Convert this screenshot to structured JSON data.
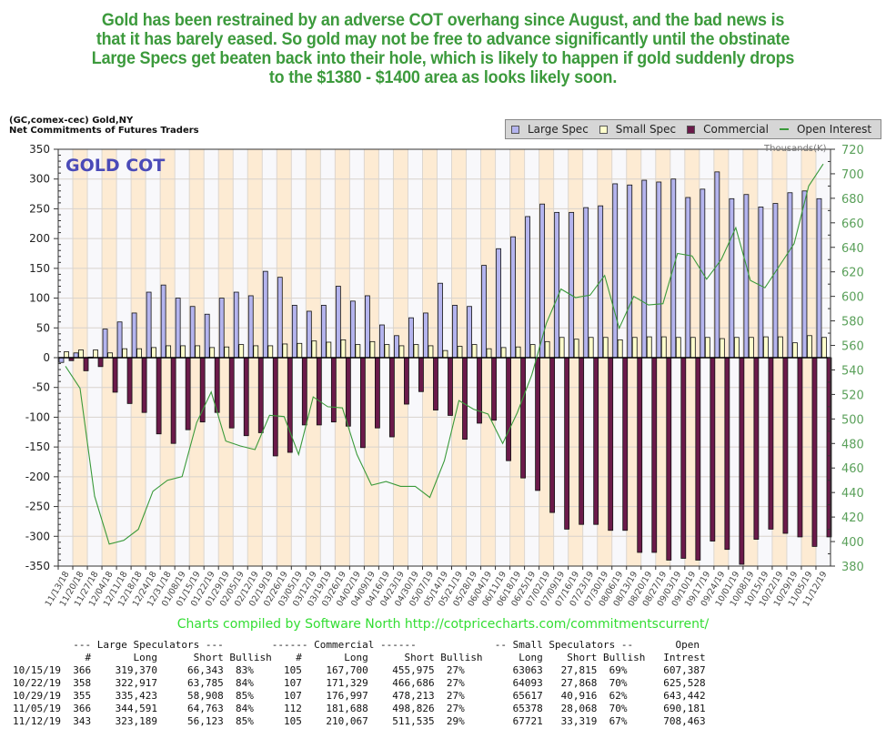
{
  "headline": [
    "Gold has been restrained by an adverse COT overhang since August, and the bad news is",
    "that it has barely eased. So gold may not be free to advance significantly until the obstinate",
    "Large Specs get beaten back into their hole, which is likely to happen if gold suddenly drops",
    "to the $1380 - $1400 area as looks likely soon."
  ],
  "chart_header": {
    "line1": "(GC,comex-cec) Gold,NY",
    "line2": "Net Commitments of Futures Traders"
  },
  "credit": "Charts compiled by Software North  http://cotpricecharts.com/commitmentscurrent/",
  "colors": {
    "large_spec": "#b4b4ee",
    "small_spec": "#ffffcc",
    "commercial": "#6b1a4a",
    "open_interest": "#3a9a3a",
    "band_peach": "#fdebd3",
    "band_white": "#f8f8fb",
    "headline": "#3c9a3c",
    "chart_title": "#4a4ab8",
    "right_axis": "#5aa05a"
  },
  "chart_data": {
    "type": "bar",
    "title": "GOLD COT",
    "right_axis_label": "Thousands(K)",
    "xlabel": "",
    "ylabel": "",
    "ylim": [
      -350,
      350
    ],
    "y_ticks": [
      350,
      300,
      250,
      200,
      150,
      100,
      50,
      0,
      -50,
      -100,
      -150,
      -200,
      -250,
      -300,
      -350
    ],
    "y2lim": [
      380,
      720
    ],
    "y2_ticks": [
      720,
      700,
      680,
      660,
      640,
      620,
      600,
      580,
      560,
      540,
      520,
      500,
      480,
      460,
      440,
      420,
      400,
      380
    ],
    "grid": true,
    "legend": {
      "placement": "top-right",
      "entries": [
        "Large Spec",
        "Small Spec",
        "Commercial",
        "Open Interest"
      ]
    },
    "categories": [
      "11/13/18",
      "11/20/18",
      "11/27/18",
      "12/04/18",
      "12/11/18",
      "12/18/18",
      "12/24/18",
      "12/31/18",
      "01/08/19",
      "01/15/19",
      "01/22/19",
      "01/29/19",
      "02/05/19",
      "02/12/19",
      "02/19/19",
      "02/26/19",
      "03/05/19",
      "03/12/19",
      "03/19/19",
      "03/26/19",
      "04/02/19",
      "04/09/19",
      "04/16/19",
      "04/23/19",
      "04/30/19",
      "05/07/19",
      "05/14/19",
      "05/21/19",
      "05/28/19",
      "06/04/19",
      "06/11/19",
      "06/18/19",
      "06/25/19",
      "07/02/19",
      "07/09/19",
      "07/16/19",
      "07/23/19",
      "07/30/19",
      "08/06/19",
      "08/13/19",
      "08/20/19",
      "08/27/19",
      "09/03/19",
      "09/10/19",
      "09/17/19",
      "09/24/19",
      "10/01/19",
      "10/08/19",
      "10/15/19",
      "10/22/19",
      "10/29/19",
      "11/05/19",
      "11/12/19"
    ],
    "series": [
      {
        "name": "Large Spec",
        "type": "bar",
        "axis": "left",
        "values": [
          -8,
          8,
          1,
          48,
          60,
          75,
          110,
          122,
          100,
          86,
          73,
          100,
          110,
          104,
          145,
          135,
          88,
          78,
          88,
          120,
          95,
          104,
          55,
          37,
          67,
          75,
          125,
          88,
          86,
          155,
          183,
          203,
          237,
          258,
          244,
          244,
          252,
          255,
          292,
          290,
          298,
          295,
          300,
          269,
          283,
          312,
          267,
          274,
          253,
          259,
          277,
          280,
          267
        ]
      },
      {
        "name": "Small Spec",
        "type": "bar",
        "axis": "left",
        "values": [
          10,
          13,
          13,
          8,
          15,
          15,
          17,
          20,
          20,
          20,
          17,
          18,
          22,
          20,
          20,
          23,
          24,
          28,
          26,
          30,
          22,
          27,
          22,
          20,
          22,
          20,
          12,
          19,
          22,
          15,
          17,
          18,
          22,
          27,
          34,
          31,
          34,
          34,
          30,
          34,
          35,
          35,
          34,
          34,
          34,
          32,
          34,
          34,
          35,
          35,
          25,
          37,
          34
        ]
      },
      {
        "name": "Commercial",
        "type": "bar",
        "axis": "left",
        "values": [
          -5,
          -22,
          -15,
          -58,
          -77,
          -92,
          -128,
          -144,
          -121,
          -108,
          -92,
          -118,
          -131,
          -126,
          -165,
          -159,
          -113,
          -113,
          -108,
          -115,
          -151,
          -118,
          -133,
          -78,
          -57,
          -88,
          -97,
          -137,
          -110,
          -105,
          -173,
          -202,
          -223,
          -260,
          -288,
          -280,
          -280,
          -290,
          -290,
          -327,
          -327,
          -340,
          -337,
          -340,
          -308,
          -322,
          -347,
          -305,
          -288,
          -295,
          -301,
          -317,
          -301
        ]
      },
      {
        "name": "Open Interest",
        "type": "line",
        "axis": "right",
        "unit": "Thousands(K)",
        "values": [
          543,
          525,
          437,
          398,
          401,
          410,
          441,
          450,
          453,
          497,
          522,
          482,
          478,
          475,
          503,
          502,
          471,
          518,
          510,
          509,
          471,
          446,
          449,
          445,
          445,
          436,
          466,
          515,
          508,
          504,
          480,
          505,
          536,
          578,
          606,
          599,
          601,
          617,
          574,
          600,
          593,
          594,
          635,
          633,
          614,
          630,
          656,
          613,
          607,
          625,
          643,
          690,
          708
        ]
      }
    ]
  },
  "table": {
    "group_headers": [
      "--- Large Speculators ---",
      "------ Commercial ------",
      "-- Small Speculators --",
      "Open"
    ],
    "columns": [
      "",
      "#",
      "Long",
      "Short",
      "Bullish",
      "#",
      "Long",
      "Short",
      "Bullish",
      "Long",
      "Short",
      "Bullish",
      "Intrest"
    ],
    "rows": [
      [
        "10/15/19",
        "366",
        "319,370",
        "66,343",
        "83%",
        "105",
        "167,700",
        "455,975",
        "27%",
        "63063",
        "27,815",
        "69%",
        "607,387"
      ],
      [
        "10/22/19",
        "358",
        "322,917",
        "63,785",
        "84%",
        "107",
        "171,329",
        "466,686",
        "27%",
        "64093",
        "27,868",
        "70%",
        "625,528"
      ],
      [
        "10/29/19",
        "355",
        "335,423",
        "58,908",
        "85%",
        "107",
        "176,997",
        "478,213",
        "27%",
        "65617",
        "40,916",
        "62%",
        "643,442"
      ],
      [
        "11/05/19",
        "366",
        "344,591",
        "64,763",
        "84%",
        "112",
        "181,688",
        "498,826",
        "27%",
        "65378",
        "28,068",
        "70%",
        "690,181"
      ],
      [
        "11/12/19",
        "343",
        "323,189",
        "56,123",
        "85%",
        "105",
        "210,067",
        "511,535",
        "29%",
        "67721",
        "33,319",
        "67%",
        "708,463"
      ]
    ]
  }
}
